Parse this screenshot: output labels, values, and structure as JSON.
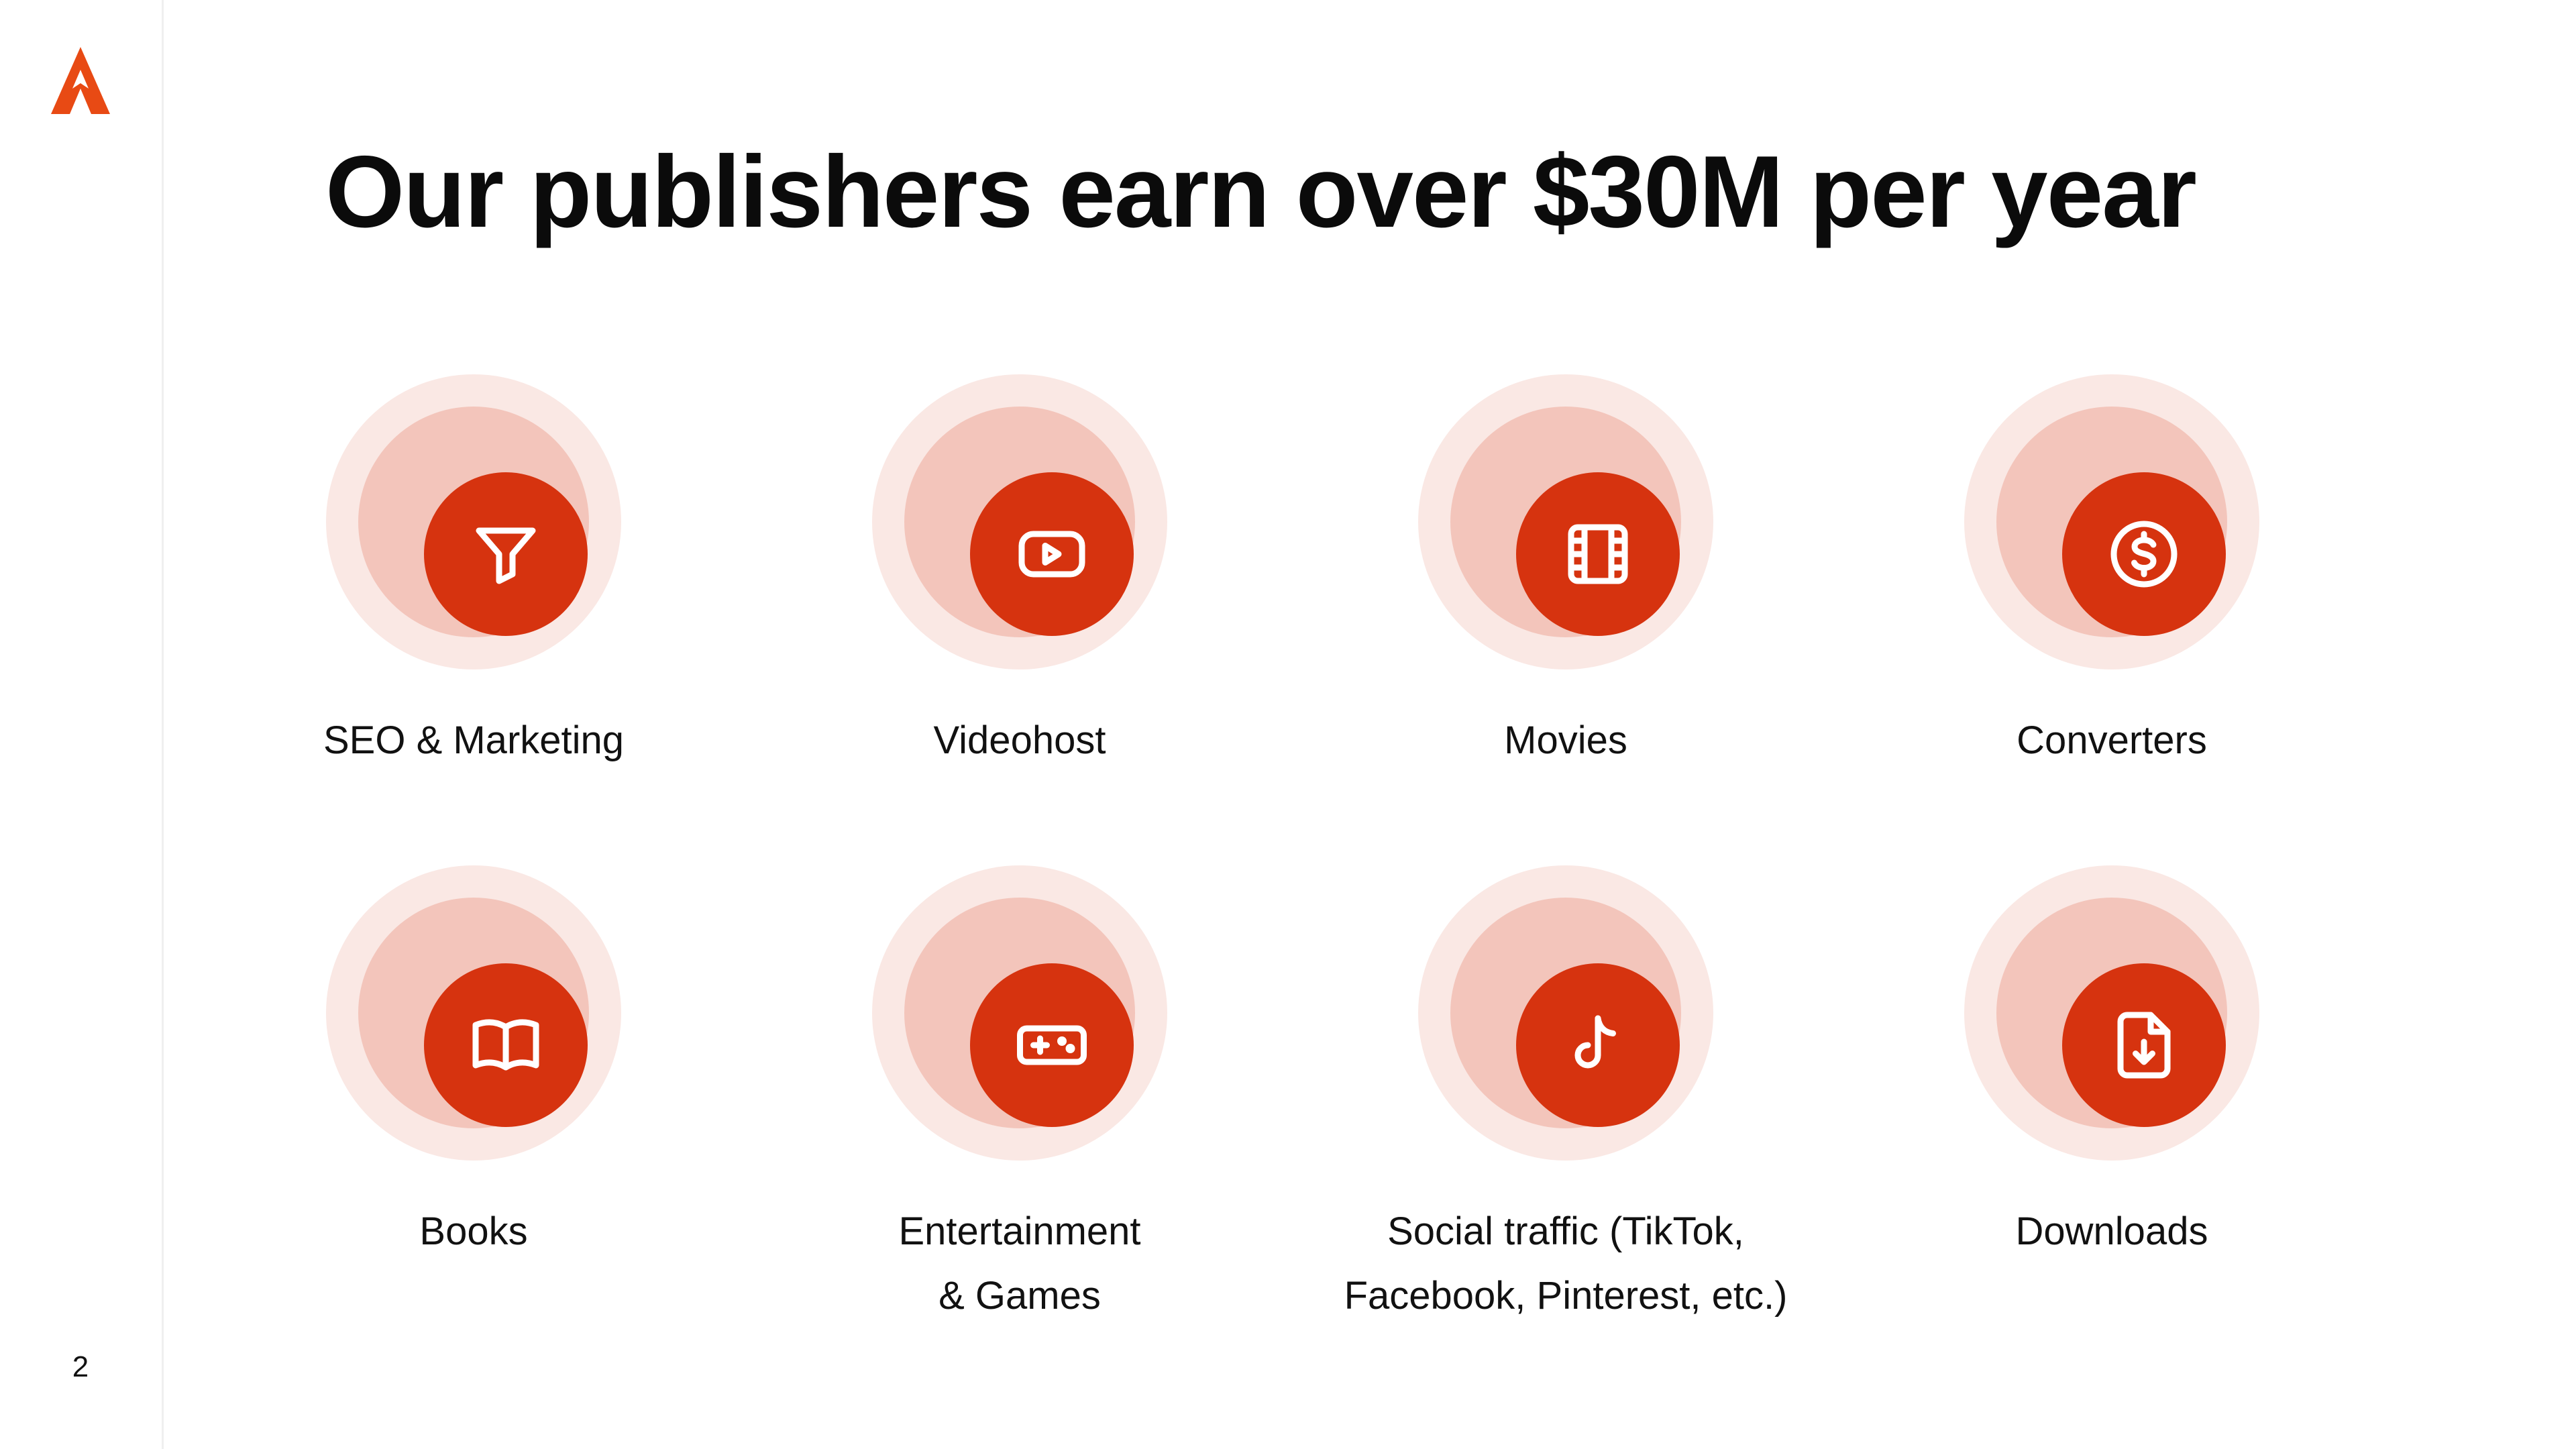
{
  "slide": {
    "title": "Our publishers earn over $30M per year",
    "page_number": "2",
    "accent_color": "#d6330f",
    "ring_colors": [
      "#fae8e4",
      "#f3c5bb",
      "#d6330f"
    ]
  },
  "categories": [
    {
      "label": "SEO & Marketing",
      "icon": "funnel-icon"
    },
    {
      "label": "Videohost",
      "icon": "play-icon"
    },
    {
      "label": "Movies",
      "icon": "film-icon"
    },
    {
      "label": "Converters",
      "icon": "dollar-icon"
    },
    {
      "label": "Books",
      "icon": "book-icon"
    },
    {
      "label": "Entertainment\n& Games",
      "icon": "gamepad-icon"
    },
    {
      "label": "Social traffic (TikTok,\nFacebook, Pinterest, etc.)",
      "icon": "tiktok-icon"
    },
    {
      "label": "Downloads",
      "icon": "file-download-icon"
    }
  ]
}
